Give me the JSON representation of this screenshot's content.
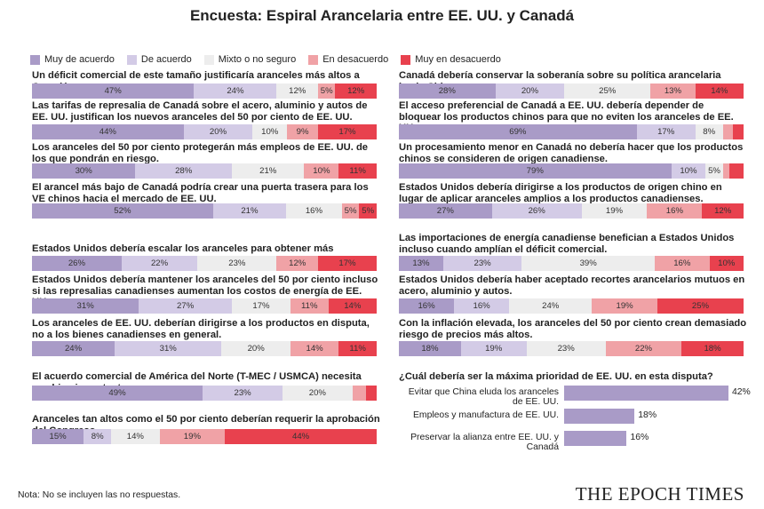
{
  "title": "Encuesta: Espiral Arancelaria entre EE. UU. y Canadá",
  "note": "Nota: No se incluyen las no respuestas.",
  "logo": "THE EPOCH TIMES",
  "colors": {
    "muy_de_acuerdo": "#a99bc7",
    "de_acuerdo": "#d3cbe6",
    "mixto": "#ededed",
    "en_desacuerdo": "#f0a2a6",
    "muy_en_desacuerdo": "#e8414e"
  },
  "chart_data": [
    {
      "type": "bar",
      "stacked": true,
      "orientation": "horizontal",
      "legend": [
        "Muy de acuerdo",
        "De acuerdo",
        "Mixto o no seguro",
        "En desacuerdo",
        "Muy en desacuerdo"
      ],
      "legend_placement": "top-left",
      "items": [
        {
          "question": "Un déficit comercial de este tamaño justificaría aranceles más altos a Canadá.",
          "values": [
            47,
            24,
            12,
            5,
            12
          ]
        },
        {
          "question": "Las tarifas de represalia de Canadá sobre el acero, aluminio y autos de EE. UU. justifican los nuevos aranceles del 50 por ciento de EE. UU.",
          "values": [
            44,
            20,
            10,
            9,
            17
          ]
        },
        {
          "question": "Los aranceles del 50 por ciento protegerán más empleos de EE. UU. de los que pondrán en riesgo.",
          "values": [
            30,
            28,
            21,
            10,
            11
          ]
        },
        {
          "question": "El arancel más bajo de Canadá podría crear una puerta trasera para los VE chinos hacia el mercado de EE. UU.",
          "values": [
            52,
            21,
            16,
            5,
            5
          ]
        },
        {
          "question": "Estados Unidos debería escalar los aranceles para obtener más concesiones de Canadá.",
          "values": [
            26,
            22,
            23,
            12,
            17
          ]
        },
        {
          "question": "Estados Unidos debería mantener los aranceles del 50 por ciento incluso si las represalias canadienses aumentan los costos de energía de EE. UU.",
          "values": [
            31,
            27,
            17,
            11,
            14
          ]
        },
        {
          "question": "Los aranceles de EE. UU. deberían dirigirse a los productos en disputa, no a los bienes canadienses en general.",
          "values": [
            24,
            31,
            20,
            14,
            11
          ]
        },
        {
          "question": "El acuerdo comercial de América del Norte (T-MEC / USMCA) necesita cambios importantes.",
          "values": [
            49,
            23,
            20,
            4,
            3
          ]
        },
        {
          "question": "Aranceles tan altos como el 50 por ciento deberían requerir la aprobación del Congreso.",
          "values": [
            15,
            8,
            14,
            19,
            44
          ]
        },
        {
          "question": "Canadá debería conservar la soberanía sobre su política arancelaria hacia China.",
          "values": [
            28,
            20,
            25,
            13,
            14
          ]
        },
        {
          "question": "El acceso preferencial de Canadá a EE. UU. debería depender de bloquear los productos chinos para que no eviten los aranceles de EE. UU.",
          "values": [
            69,
            17,
            8,
            3,
            3
          ]
        },
        {
          "question": "Un procesamiento menor en Canadá no debería hacer que los productos chinos se consideren de origen canadiense.",
          "values": [
            79,
            10,
            5,
            2,
            4
          ]
        },
        {
          "question": "Estados Unidos debería dirigirse a los productos de origen chino en lugar de aplicar aranceles amplios a los productos canadienses.",
          "values": [
            27,
            26,
            19,
            16,
            12
          ]
        },
        {
          "question": "Las importaciones de energía canadiense benefician a Estados Unidos incluso cuando amplían el déficit comercial.",
          "values": [
            13,
            23,
            39,
            16,
            10
          ]
        },
        {
          "question": "Estados Unidos debería haber aceptado recortes arancelarios mutuos en acero, aluminio y autos.",
          "values": [
            16,
            16,
            24,
            19,
            25
          ]
        },
        {
          "question": "Con la inflación elevada, los aranceles del 50 por ciento crean demasiado riesgo de precios más altos.",
          "values": [
            18,
            19,
            23,
            22,
            18
          ]
        }
      ]
    },
    {
      "type": "bar",
      "orientation": "horizontal",
      "title": "¿Cuál debería ser la máxima prioridad de EE. UU. en esta disputa?",
      "categories": [
        "Evitar que China eluda los aranceles de EE. UU.",
        "Empleos y manufactura de EE. UU.",
        "Preservar la alianza entre EE. UU. y Canadá"
      ],
      "values": [
        42,
        18,
        16
      ],
      "labels": [
        "42%",
        "18%",
        "16%"
      ]
    }
  ]
}
